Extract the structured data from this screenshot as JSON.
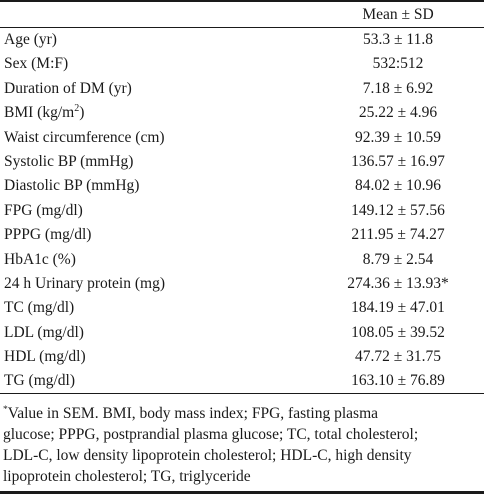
{
  "table": {
    "column_header": "Mean ± SD",
    "rows": [
      {
        "label": "Age (yr)",
        "value": "53.3 ± 11.8"
      },
      {
        "label": "Sex (M:F)",
        "value": "532:512"
      },
      {
        "label": "Duration of DM (yr)",
        "value": "7.18 ± 6.92"
      },
      {
        "label_pre": "BMI (kg/m",
        "label_sup": "2",
        "label_post": ")",
        "value": "25.22 ± 4.96"
      },
      {
        "label": "Waist circumference (cm)",
        "value": "92.39 ± 10.59"
      },
      {
        "label": "Systolic BP (mmHg)",
        "value": "136.57 ± 16.97"
      },
      {
        "label": "Diastolic BP (mmHg)",
        "value": "84.02 ± 10.96"
      },
      {
        "label": "FPG (mg/dl)",
        "value": "149.12 ± 57.56"
      },
      {
        "label": "PPPG (mg/dl)",
        "value": "211.95 ± 74.27"
      },
      {
        "label": "HbA1c (%)",
        "value": "8.79 ± 2.54"
      },
      {
        "label": "24 h Urinary protein (mg)",
        "value": "274.36 ± 13.93*"
      },
      {
        "label": "TC (mg/dl)",
        "value": "184.19 ± 47.01"
      },
      {
        "label": "LDL (mg/dl)",
        "value": "108.05 ± 39.52"
      },
      {
        "label": "HDL (mg/dl)",
        "value": "47.72 ± 31.75"
      },
      {
        "label": "TG (mg/dl)",
        "value": "163.10 ± 76.89"
      }
    ]
  },
  "footnote": {
    "mark": "*",
    "lines": [
      "Value in SEM. BMI, body mass index; FPG, fasting plasma",
      "glucose; PPPG, postprandial plasma glucose; TC, total cholesterol;",
      "LDL-C, low density lipoprotein cholesterol; HDL-C, high density",
      "lipoprotein cholesterol; TG, triglyceride"
    ]
  }
}
